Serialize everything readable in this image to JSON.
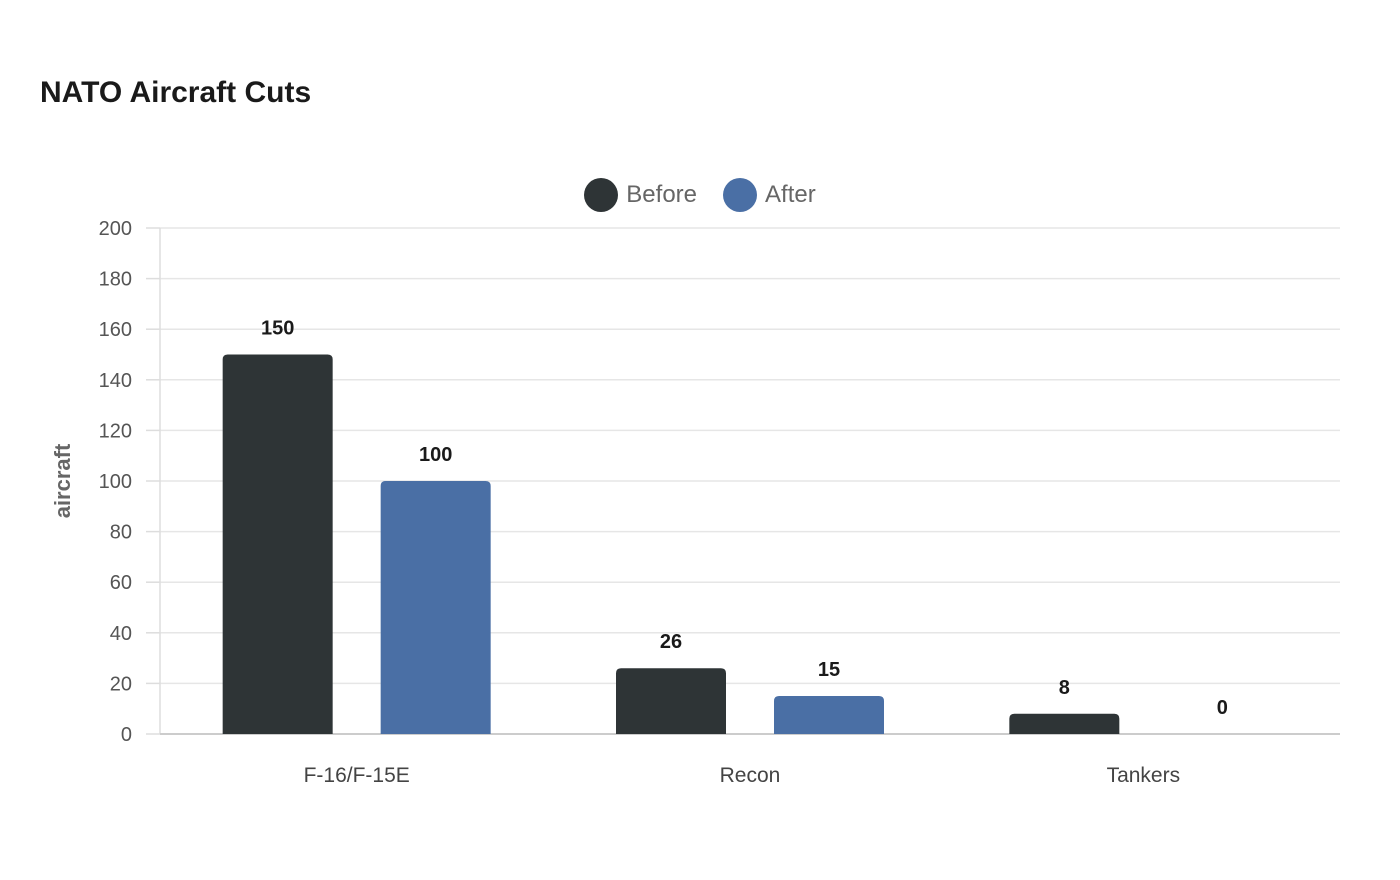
{
  "chart_data": {
    "type": "bar",
    "title": "NATO Aircraft Cuts",
    "xlabel": "",
    "ylabel": "aircraft",
    "categories": [
      "F-16/F-15E",
      "Recon",
      "Tankers"
    ],
    "series": [
      {
        "name": "Before",
        "color": "#2e3436",
        "values": [
          150,
          26,
          8
        ]
      },
      {
        "name": "After",
        "color": "#4a6fa5",
        "values": [
          100,
          15,
          0
        ]
      }
    ],
    "ylim": [
      0,
      200
    ],
    "yticks": [
      0,
      20,
      40,
      60,
      80,
      100,
      120,
      140,
      160,
      180,
      200
    ],
    "grid": true,
    "legend_position": "top-center",
    "data_labels": true
  }
}
